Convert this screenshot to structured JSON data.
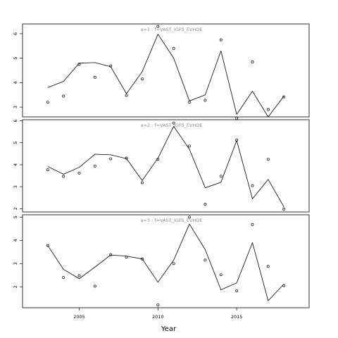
{
  "chart_data": {
    "type": "line",
    "xlabel": "Year",
    "x_ticks": [
      2005,
      2010,
      2015
    ],
    "xlim": [
      2001.4,
      2019.6
    ],
    "panels": [
      {
        "title": "a=1 : f=VAST_IGFS_EVHOE",
        "ylim": [
          2.6,
          6.4
        ],
        "y_ticks": [
          3,
          4,
          5,
          6
        ],
        "series": [
          {
            "kind": "line",
            "x": [
              2003,
              2004,
              2005,
              2006,
              2007,
              2008,
              2009,
              2010,
              2011,
              2012,
              2013,
              2014,
              2015,
              2016,
              2017,
              2018
            ],
            "y": [
              3.8,
              4.05,
              4.8,
              4.82,
              4.65,
              3.55,
              4.45,
              5.98,
              5.0,
              3.25,
              3.5,
              5.3,
              2.7,
              3.65,
              2.6,
              3.45
            ]
          },
          {
            "kind": "points",
            "x": [
              2003,
              2004,
              2005,
              2006,
              2007,
              2008,
              2009,
              2010,
              2011,
              2012,
              2013,
              2014,
              2015,
              2016,
              2017,
              2018
            ],
            "y": [
              3.2,
              3.45,
              4.75,
              4.22,
              4.68,
              3.48,
              4.15,
              6.3,
              5.4,
              3.2,
              3.28,
              5.75,
              2.55,
              4.85,
              2.9,
              3.42
            ]
          }
        ]
      },
      {
        "title": "a=2 : f=VAST_IGFS_EVHOE",
        "ylim": [
          1.85,
          6.05
        ],
        "y_ticks": [
          2,
          3,
          4,
          5,
          6
        ],
        "series": [
          {
            "kind": "line",
            "x": [
              2003,
              2004,
              2005,
              2006,
              2007,
              2008,
              2009,
              2010,
              2011,
              2012,
              2013,
              2014,
              2015,
              2016,
              2017,
              2018
            ],
            "y": [
              3.92,
              3.57,
              3.88,
              4.48,
              4.45,
              4.28,
              3.28,
              4.3,
              5.75,
              4.7,
              2.95,
              3.2,
              5.1,
              2.45,
              3.33,
              2.08
            ]
          },
          {
            "kind": "points",
            "x": [
              2003,
              2004,
              2005,
              2006,
              2007,
              2008,
              2009,
              2010,
              2011,
              2012,
              2013,
              2014,
              2015,
              2016,
              2017,
              2018
            ],
            "y": [
              3.77,
              3.47,
              3.62,
              3.94,
              4.27,
              4.3,
              3.18,
              4.25,
              5.9,
              4.85,
              2.2,
              3.48,
              5.12,
              3.05,
              4.25,
              1.98
            ]
          }
        ]
      },
      {
        "title": "a=3 : f=VAST_IGFS_EVHOE",
        "ylim": [
          1.1,
          5.1
        ],
        "y_ticks": [
          2,
          3,
          4,
          5
        ],
        "series": [
          {
            "kind": "line",
            "x": [
              2003,
              2004,
              2005,
              2006,
              2007,
              2008,
              2009,
              2010,
              2011,
              2012,
              2013,
              2014,
              2015,
              2016,
              2017,
              2018
            ],
            "y": [
              3.78,
              2.75,
              2.35,
              2.85,
              3.37,
              3.32,
              3.2,
              2.2,
              3.15,
              4.7,
              3.6,
              1.87,
              2.17,
              3.9,
              1.4,
              2.12
            ]
          },
          {
            "kind": "points",
            "x": [
              2003,
              2004,
              2005,
              2006,
              2007,
              2008,
              2009,
              2010,
              2011,
              2012,
              2013,
              2014,
              2015,
              2016,
              2017,
              2018
            ],
            "y": [
              3.78,
              2.4,
              2.48,
              2.03,
              3.38,
              3.28,
              3.2,
              1.22,
              3.0,
              5.0,
              3.15,
              2.52,
              1.83,
              4.68,
              2.88,
              2.05
            ]
          }
        ]
      }
    ]
  }
}
